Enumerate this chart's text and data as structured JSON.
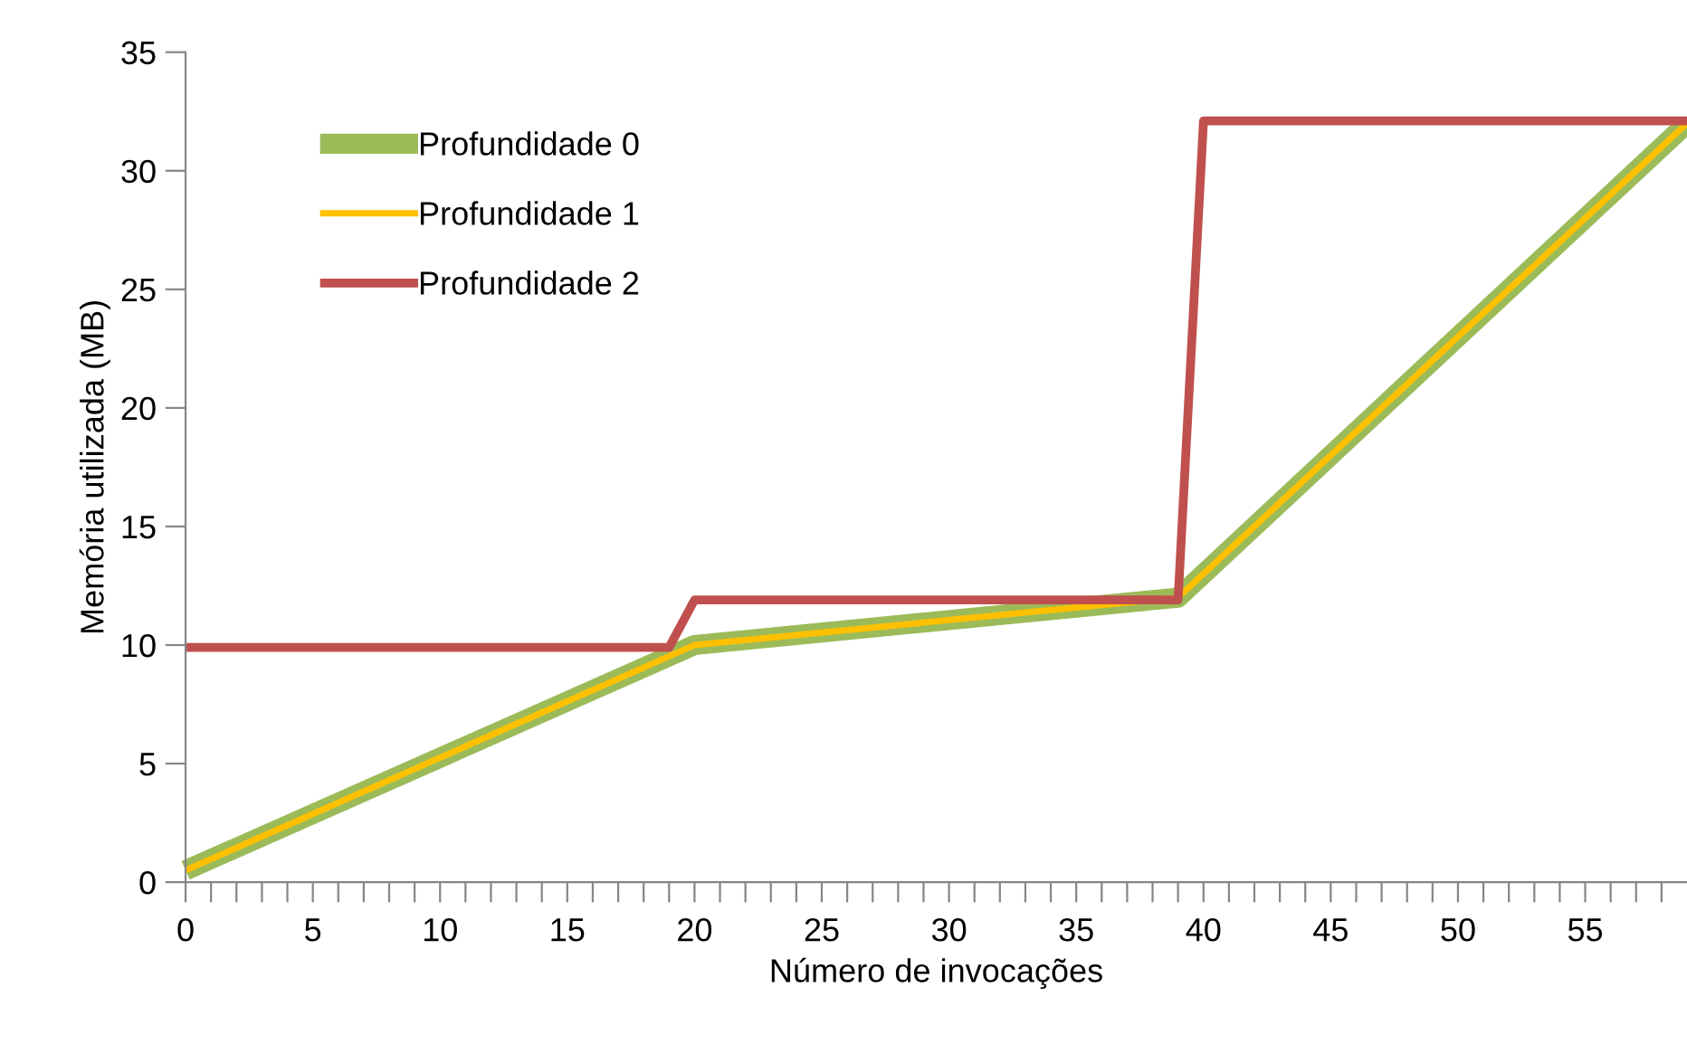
{
  "chart_data": {
    "type": "line",
    "xlabel": "Número de invocações",
    "ylabel": "Memória utilizada (MB)",
    "series": [
      {
        "name": "Profundidade 0",
        "color": "#9bbb59",
        "x": [
          0,
          20,
          39,
          59
        ],
        "values": [
          0.5,
          10,
          12,
          32
        ]
      },
      {
        "name": "Profundidade 1",
        "color": "#ffc000",
        "x": [
          0,
          20,
          39,
          59
        ],
        "values": [
          0.5,
          10,
          12,
          32
        ]
      },
      {
        "name": "Profundidade 2",
        "color": "#c0504d",
        "x": [
          0,
          19,
          20,
          39,
          40,
          59
        ],
        "values": [
          9.9,
          9.9,
          11.9,
          11.9,
          32.1,
          32.1
        ]
      }
    ],
    "xlim": [
      0,
      59
    ],
    "ylim": [
      0,
      35
    ],
    "xticks": [
      0,
      {
        "value": 1,
        "label": null
      },
      {
        "value": 2,
        "label": null
      },
      {
        "value": 3,
        "label": null
      },
      {
        "value": 4,
        "label": null
      },
      5,
      {
        "value": 6,
        "label": null
      },
      {
        "value": 7,
        "label": null
      },
      {
        "value": 8,
        "label": null
      },
      {
        "value": 9,
        "label": null
      },
      10,
      {
        "value": 11,
        "label": null
      },
      {
        "value": 12,
        "label": null
      },
      {
        "value": 13,
        "label": null
      },
      {
        "value": 14,
        "label": null
      },
      15,
      {
        "value": 16,
        "label": null
      },
      {
        "value": 17,
        "label": null
      },
      {
        "value": 18,
        "label": null
      },
      {
        "value": 19,
        "label": null
      },
      20,
      {
        "value": 21,
        "label": null
      },
      {
        "value": 22,
        "label": null
      },
      {
        "value": 23,
        "label": null
      },
      {
        "value": 24,
        "label": null
      },
      25,
      {
        "value": 26,
        "label": null
      },
      {
        "value": 27,
        "label": null
      },
      {
        "value": 28,
        "label": null
      },
      {
        "value": 29,
        "label": null
      },
      30,
      {
        "value": 31,
        "label": null
      },
      {
        "value": 32,
        "label": null
      },
      {
        "value": 33,
        "label": null
      },
      {
        "value": 34,
        "label": null
      },
      35,
      {
        "value": 36,
        "label": null
      },
      {
        "value": 37,
        "label": null
      },
      {
        "value": 38,
        "label": null
      },
      {
        "value": 39,
        "label": null
      },
      40,
      {
        "value": 41,
        "label": null
      },
      {
        "value": 42,
        "label": null
      },
      {
        "value": 43,
        "label": null
      },
      {
        "value": 44,
        "label": null
      },
      45,
      {
        "value": 46,
        "label": null
      },
      {
        "value": 47,
        "label": null
      },
      {
        "value": 48,
        "label": null
      },
      {
        "value": 49,
        "label": null
      },
      50,
      {
        "value": 51,
        "label": null
      },
      {
        "value": 52,
        "label": null
      },
      {
        "value": 53,
        "label": null
      },
      {
        "value": 54,
        "label": null
      },
      55,
      {
        "value": 56,
        "label": null
      },
      {
        "value": 57,
        "label": null
      },
      {
        "value": 58,
        "label": null
      }
    ],
    "yticks": [
      0,
      5,
      10,
      15,
      20,
      25,
      30,
      35
    ],
    "grid": false,
    "legend": "top left",
    "marker": "none",
    "line_style": "solid"
  }
}
